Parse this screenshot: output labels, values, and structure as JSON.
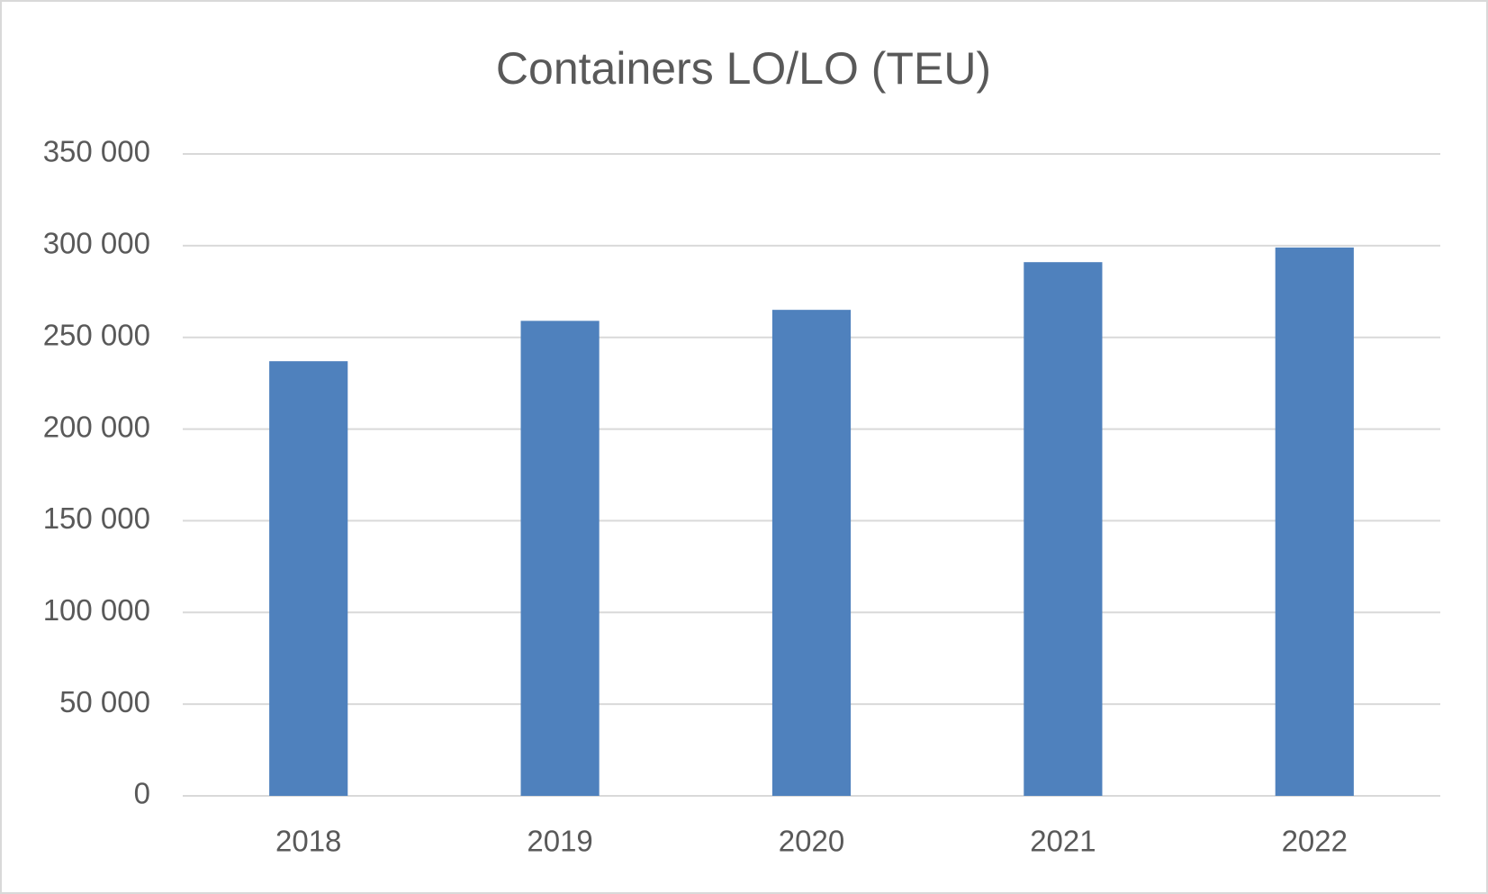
{
  "chart_data": {
    "type": "bar",
    "title": "Containers LO/LO (TEU)",
    "categories": [
      "2018",
      "2019",
      "2020",
      "2021",
      "2022"
    ],
    "values": [
      237000,
      259000,
      265000,
      291000,
      299000
    ],
    "color": "#4f81bd",
    "ylim": [
      0,
      350000
    ],
    "yticks": [
      0,
      {
        "value": 50000,
        "label": "50 000"
      },
      {
        "value": 100000,
        "label": "100 000"
      },
      {
        "value": 150000,
        "label": "150 000"
      },
      {
        "value": 200000,
        "label": "200 000"
      },
      {
        "value": 250000,
        "label": "250 000"
      },
      {
        "value": 300000,
        "label": "300 000"
      },
      {
        "value": 350000,
        "label": "350 000"
      }
    ],
    "grid": true
  }
}
